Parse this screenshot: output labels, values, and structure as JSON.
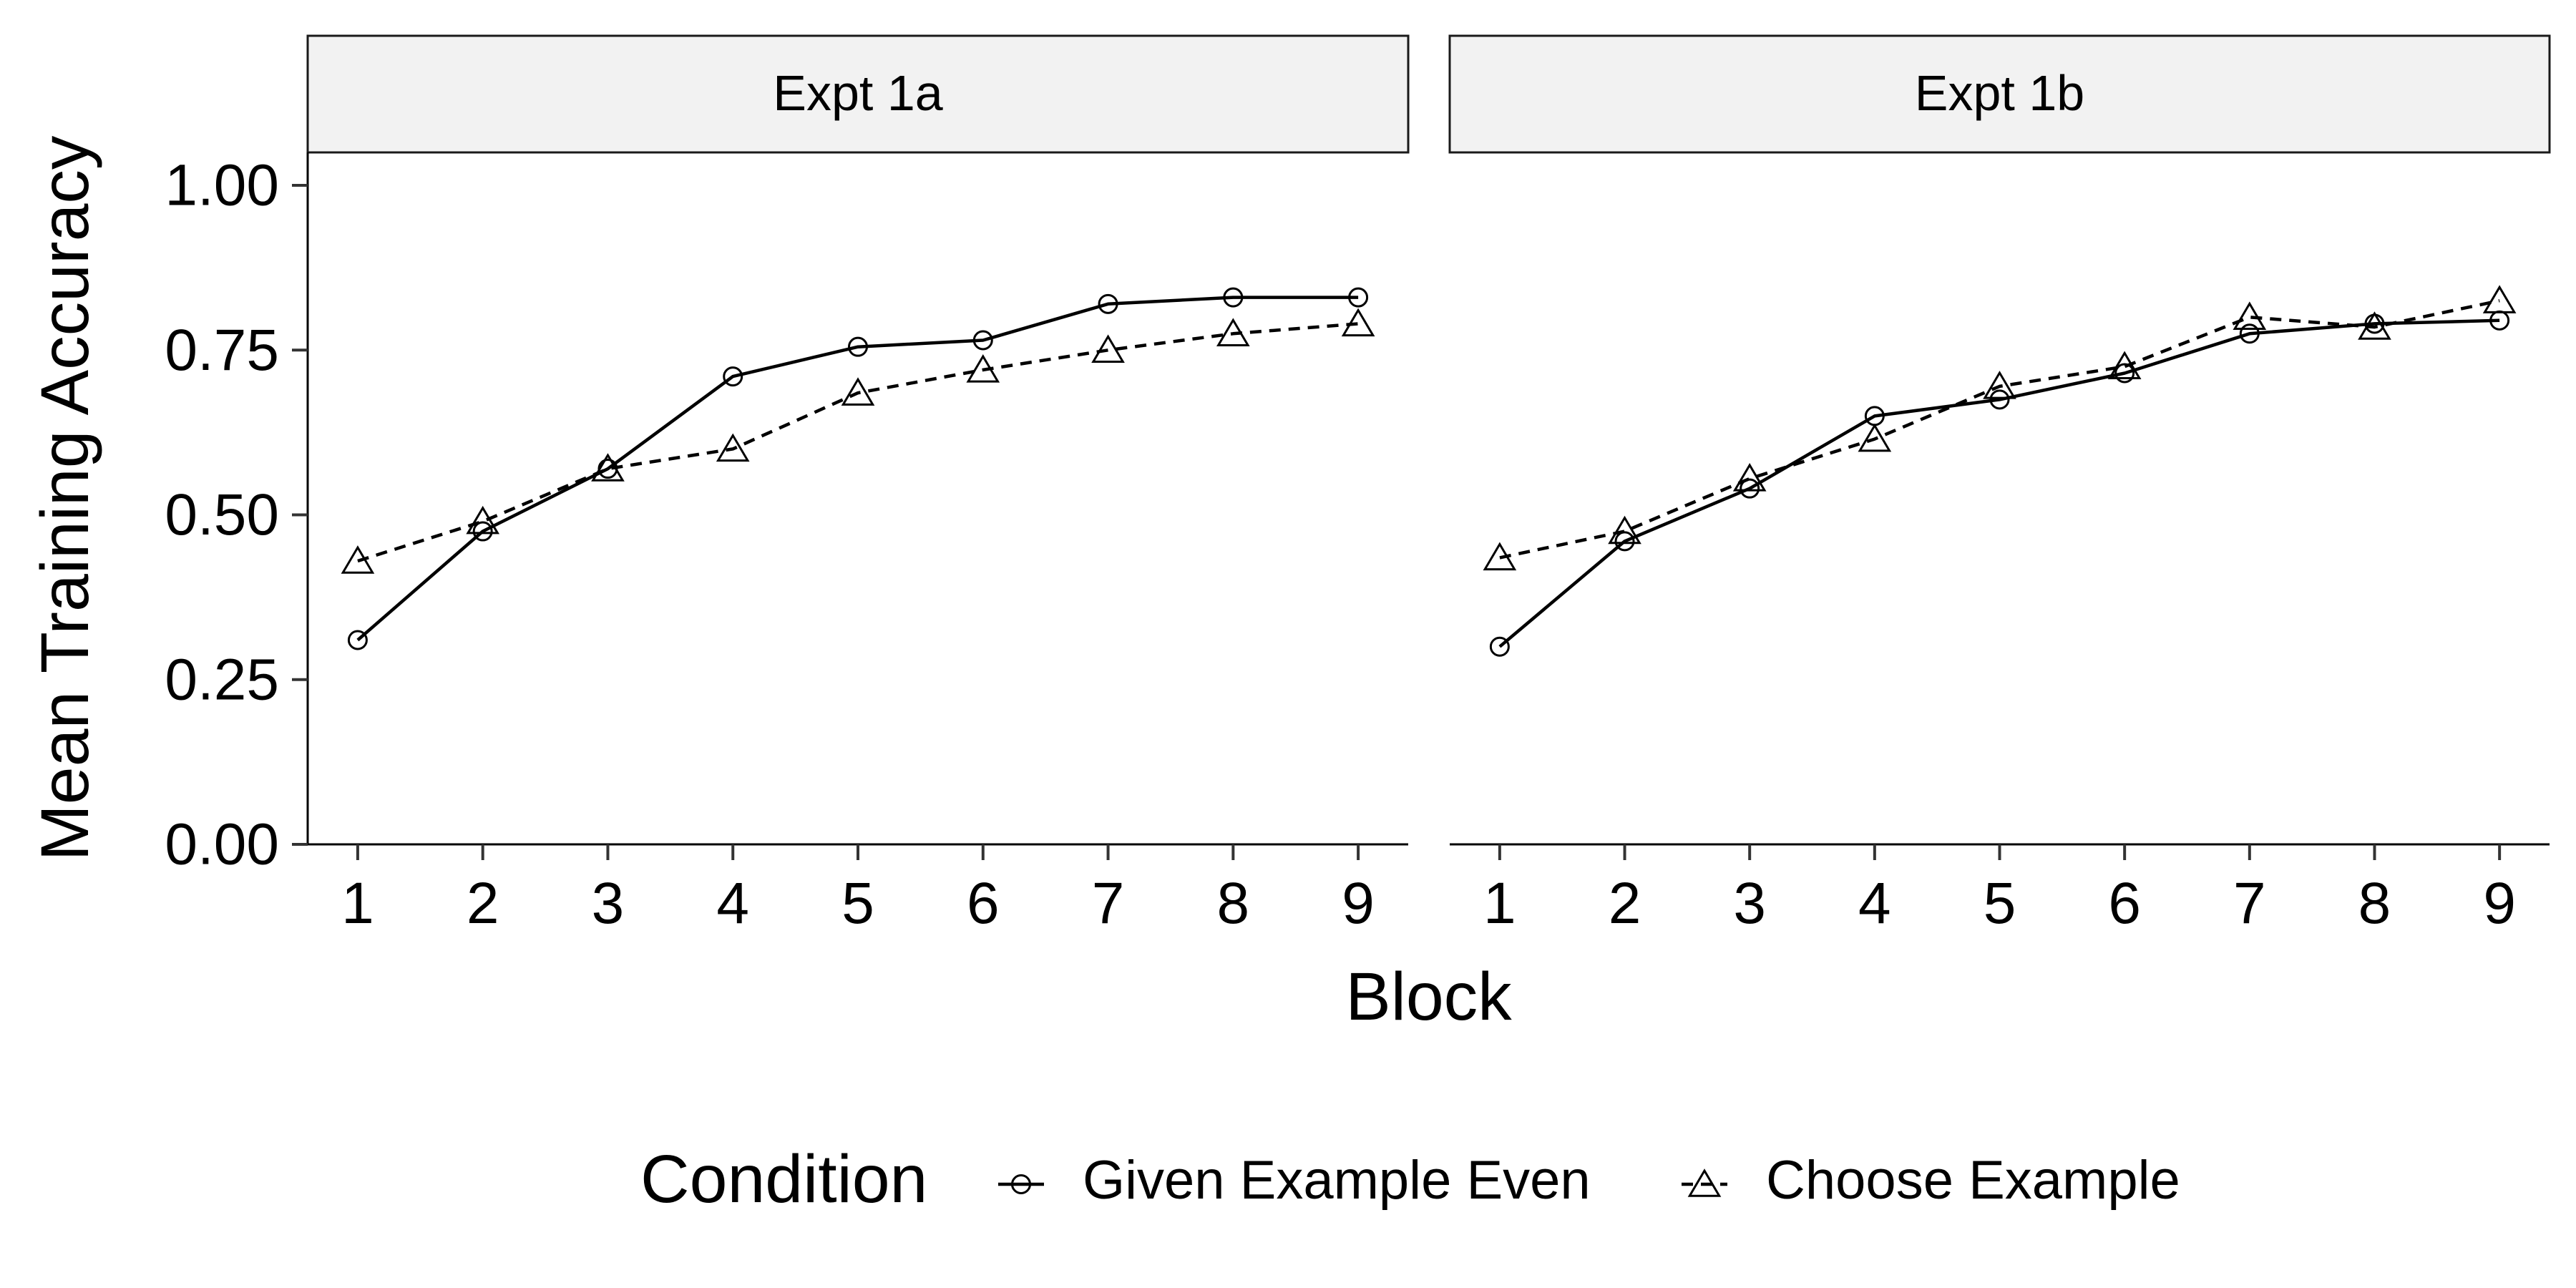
{
  "chart_data": {
    "type": "line",
    "xlabel": "Block",
    "ylabel": "Mean Training Accuracy",
    "ylim": [
      0,
      1.05
    ],
    "xlim": [
      0.6,
      9.4
    ],
    "x": [
      1,
      2,
      3,
      4,
      5,
      6,
      7,
      8,
      9
    ],
    "xticks": [
      "1",
      "2",
      "3",
      "4",
      "5",
      "6",
      "7",
      "8",
      "9"
    ],
    "yticks": [
      "0.00",
      "0.25",
      "0.50",
      "0.75",
      "1.00"
    ],
    "ytick_values": [
      0,
      0.25,
      0.5,
      0.75,
      1.0
    ],
    "grid": false,
    "legend_position": "bottom",
    "legend_title": "Condition",
    "series_meta": [
      {
        "name": "Given Example Even",
        "marker": "circle",
        "linestyle": "solid",
        "color": "#000000"
      },
      {
        "name": "Choose Example",
        "marker": "triangle",
        "linestyle": "dashed",
        "color": "#000000"
      }
    ],
    "panels": [
      {
        "title": "Expt 1a",
        "series": [
          {
            "name": "Given Example Even",
            "values": [
              0.31,
              0.475,
              0.57,
              0.71,
              0.755,
              0.765,
              0.82,
              0.83,
              0.83
            ]
          },
          {
            "name": "Choose Example",
            "values": [
              0.43,
              0.49,
              0.57,
              0.6,
              0.685,
              0.72,
              0.75,
              0.775,
              0.79
            ]
          }
        ]
      },
      {
        "title": "Expt 1b",
        "series": [
          {
            "name": "Given Example Even",
            "values": [
              0.3,
              0.46,
              0.54,
              0.65,
              0.675,
              0.715,
              0.775,
              0.79,
              0.795
            ]
          },
          {
            "name": "Choose Example",
            "values": [
              0.435,
              0.475,
              0.555,
              0.615,
              0.695,
              0.725,
              0.8,
              0.785,
              0.825
            ]
          }
        ]
      }
    ]
  }
}
